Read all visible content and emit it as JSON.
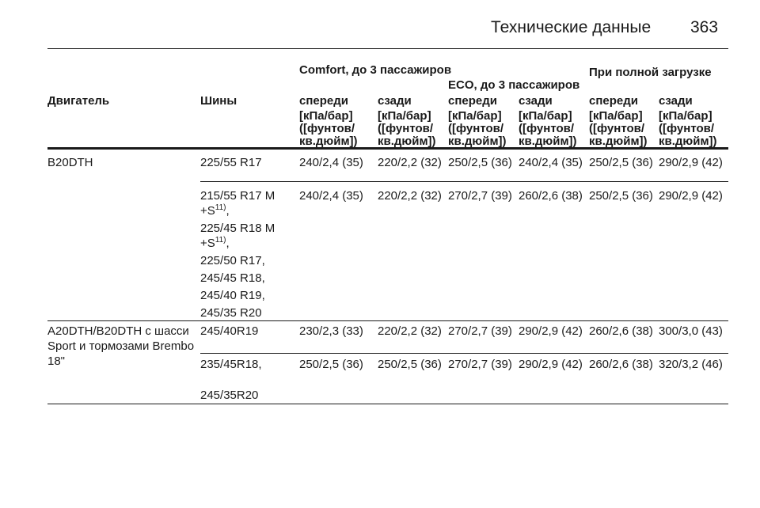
{
  "header": {
    "title": "Технические данные",
    "page": "363"
  },
  "table": {
    "group_headers": [
      "Comfort, до 3 пассажиров",
      "ECO, до 3 пассажиров",
      "При полной загрузке"
    ],
    "columns": [
      "Двигатель",
      "Шины",
      "спереди",
      "сзади",
      "спереди",
      "сзади",
      "спереди",
      "сзади"
    ],
    "units": [
      "[кПа/бар] ([фунтов/ кв.дюйм])",
      "[кПа/бар] ([фунтов/ кв.дюйм])",
      "[кПа/бар] ([фунтов/ кв.дюйм])",
      "[кПа/бар] ([фунтов/ кв.дюйм])",
      "[кПа/бар] ([фунтов/ кв.дюйм])",
      "[кПа/бар] ([фунтов/ кв.дюйм])"
    ],
    "rows": [
      {
        "engine": "B20DTH",
        "tires": [
          "225/55 R17"
        ],
        "values": [
          "240/2,4 (35)",
          "220/2,2 (32)",
          "250/2,5 (36)",
          "240/2,4 (35)",
          "250/2,5 (36)",
          "290/2,9 (42)"
        ]
      },
      {
        "tires": [
          {
            "text": "215/55 R17 M +S",
            "sup": "11)",
            "end": ","
          },
          {
            "text": "225/45 R18 M +S",
            "sup": "11)",
            "end": ","
          },
          "225/50 R17,",
          "245/45 R18,",
          "245/40 R19,",
          "245/35 R20"
        ],
        "values": [
          "240/2,4 (35)",
          "220/2,2 (32)",
          "270/2,7 (39)",
          "260/2,6 (38)",
          "250/2,5 (36)",
          "290/2,9 (42)"
        ]
      },
      {
        "engine": "A20DTH/B20DTH с шасси Sport и тормозами Brembo 18\"",
        "tires": [
          "245/40R19"
        ],
        "values": [
          "230/2,3 (33)",
          "220/2,2 (32)",
          "270/2,7 (39)",
          "290/2,9 (42)",
          "260/2,6 (38)",
          "300/3,0 (43)"
        ]
      },
      {
        "tires": [
          "235/45R18,",
          "245/35R20"
        ],
        "values": [
          "250/2,5 (36)",
          "250/2,5 (36)",
          "270/2,7 (39)",
          "290/2,9 (42)",
          "260/2,6 (38)",
          "320/3,2 (46)"
        ]
      }
    ]
  }
}
